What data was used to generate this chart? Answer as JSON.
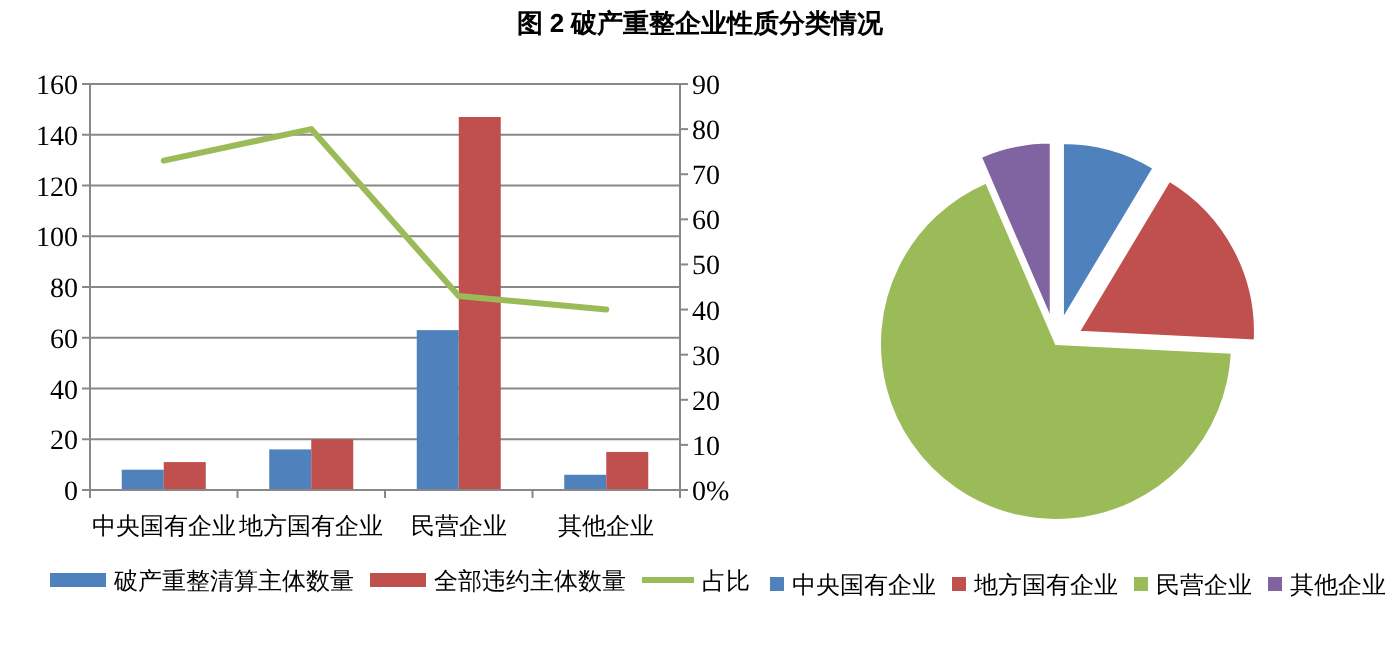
{
  "chart_data": [
    {
      "type": "bar",
      "title": "图 2  破产重整企业性质分类情况",
      "categories": [
        "中央国有企业",
        "地方国有企业",
        "民营企业",
        "其他企业"
      ],
      "series": [
        {
          "name": "破产重整清算主体数量",
          "color": "#4f81bd",
          "values": [
            8,
            16,
            63,
            6
          ]
        },
        {
          "name": "全部违约主体数量",
          "color": "#c0504d",
          "values": [
            11,
            20,
            147,
            15
          ]
        },
        {
          "name": "占比",
          "type": "line",
          "axis": "y2",
          "color": "#9bbb59",
          "values": [
            73,
            80,
            43,
            40
          ]
        }
      ],
      "ylim": [
        0,
        160
      ],
      "yticks": [
        0,
        20,
        40,
        60,
        80,
        100,
        120,
        140,
        160
      ],
      "y2lim": [
        0,
        90
      ],
      "y2ticks": [
        {
          "value": 0,
          "label": "0%"
        },
        10,
        20,
        30,
        40,
        50,
        60,
        70,
        80,
        90
      ],
      "grid": "y",
      "legend": "bottom"
    },
    {
      "type": "pie",
      "categories": [
        "中央国有企业",
        "地方国有企业",
        "民营企业",
        "其他企业"
      ],
      "values": [
        8.6,
        17.2,
        67.7,
        6.5
      ],
      "colors": [
        "#4f81bd",
        "#c0504d",
        "#9bbb59",
        "#8064a2"
      ],
      "legend": "bottom"
    }
  ]
}
